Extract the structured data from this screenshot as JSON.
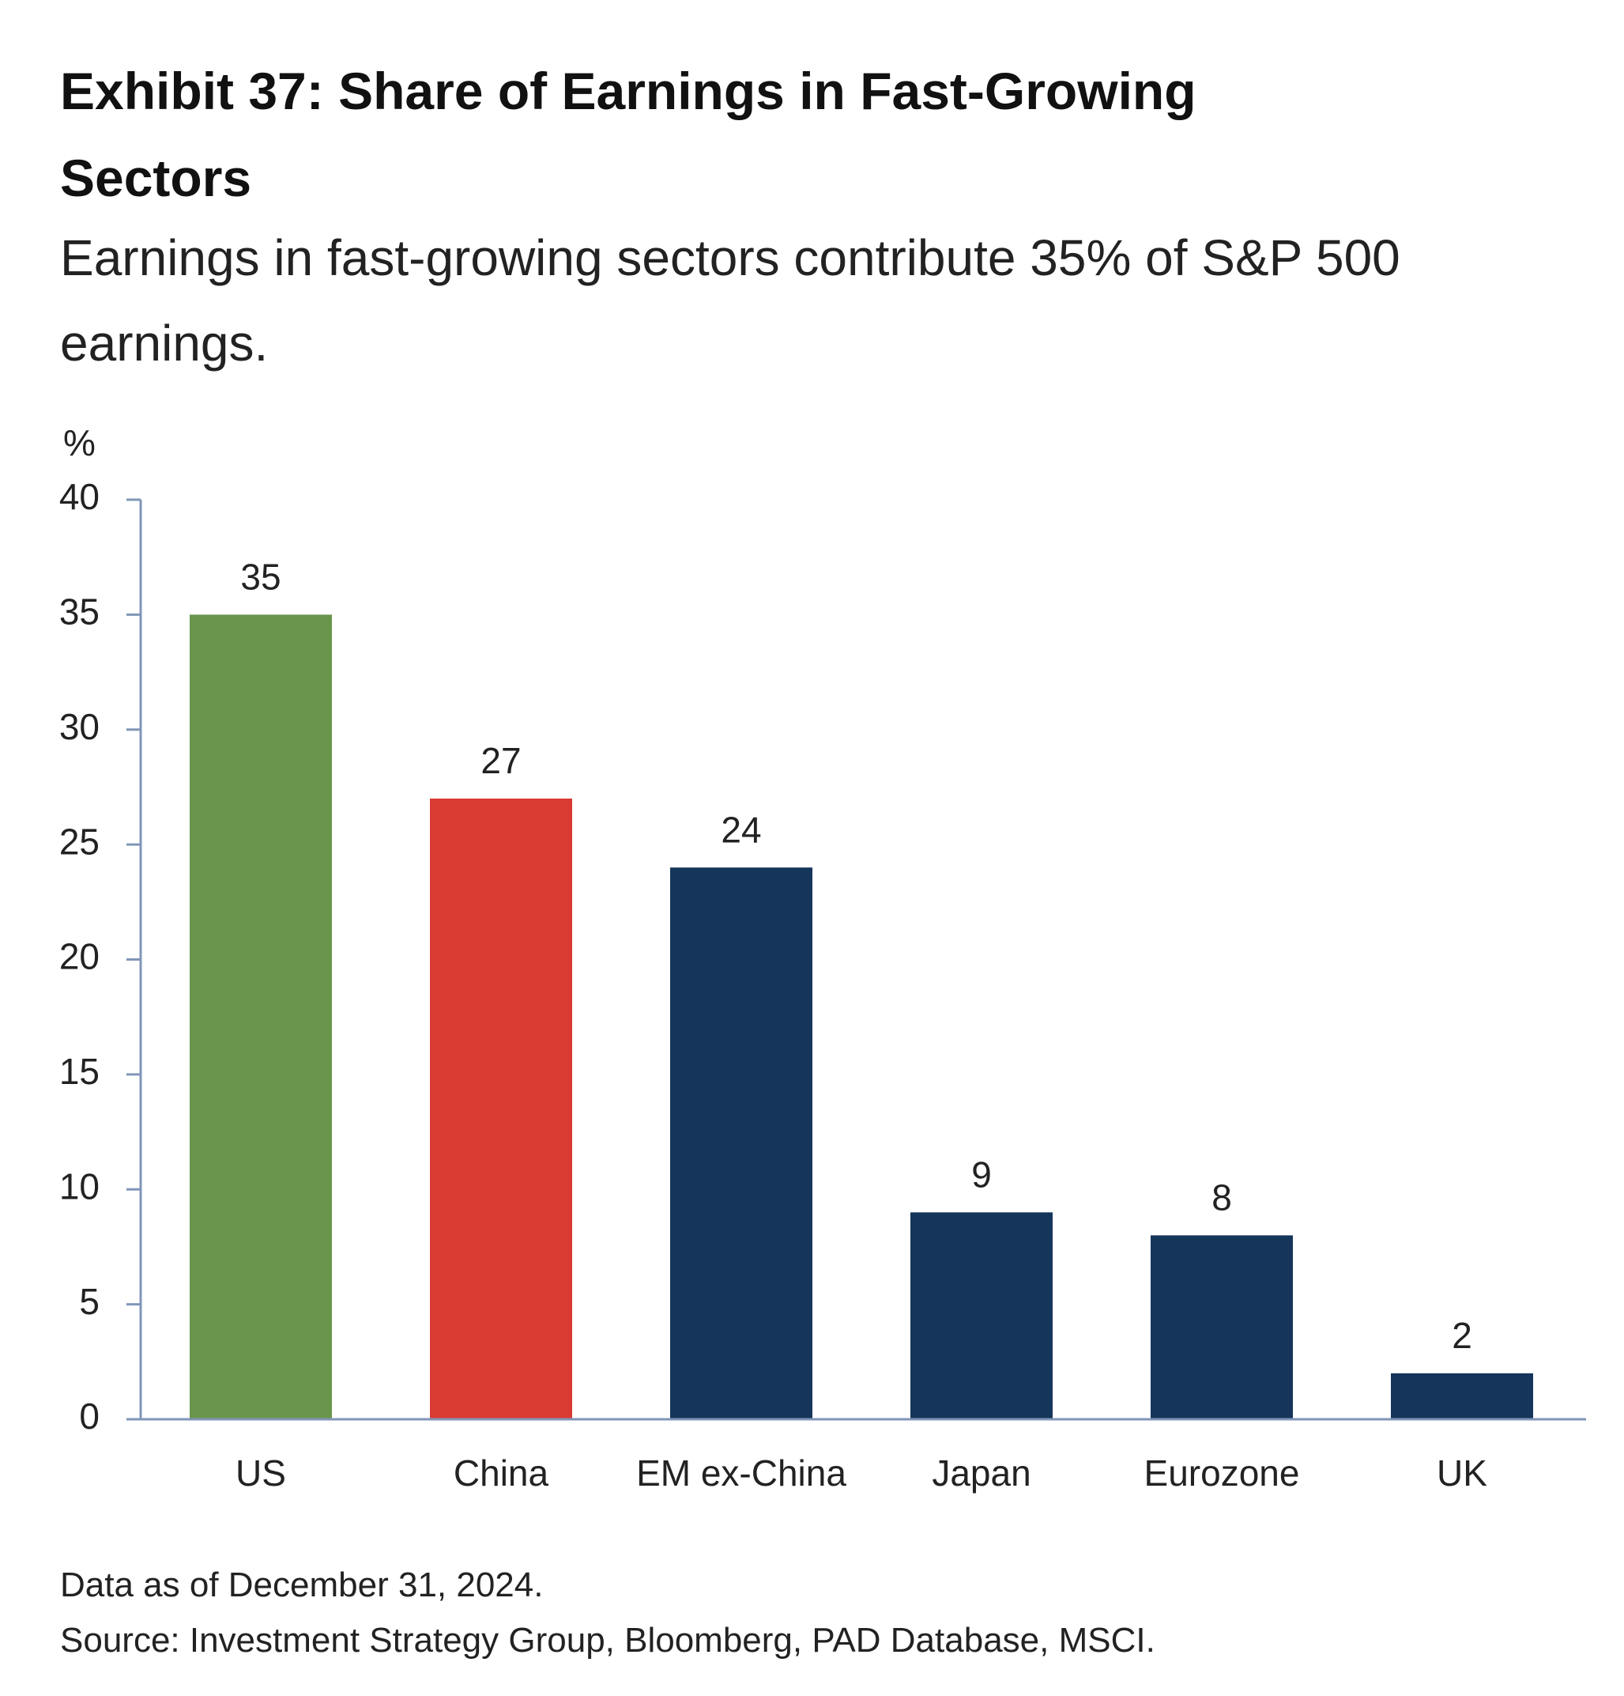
{
  "chart_data": {
    "type": "bar",
    "title": "Exhibit 37: Share of Earnings in Fast-Growing Sectors",
    "subtitle": "Earnings in fast-growing sectors contribute 35% of S&P 500 earnings.",
    "y_axis_label": "%",
    "categories": [
      "US",
      "China",
      "EM ex-China",
      "Japan",
      "Eurozone",
      "UK"
    ],
    "values": [
      35,
      27,
      24,
      9,
      8,
      2
    ],
    "colors": [
      "#6a954c",
      "#d93a32",
      "#15355a",
      "#15355a",
      "#15355a",
      "#15355a"
    ],
    "ylim": [
      0,
      40
    ],
    "yticks": [
      0,
      5,
      10,
      15,
      20,
      25,
      30,
      35,
      40
    ],
    "grid": false,
    "notes": [
      "Data as of December 31, 2024.",
      "Source: Investment Strategy Group, Bloomberg, PAD Database, MSCI."
    ]
  }
}
